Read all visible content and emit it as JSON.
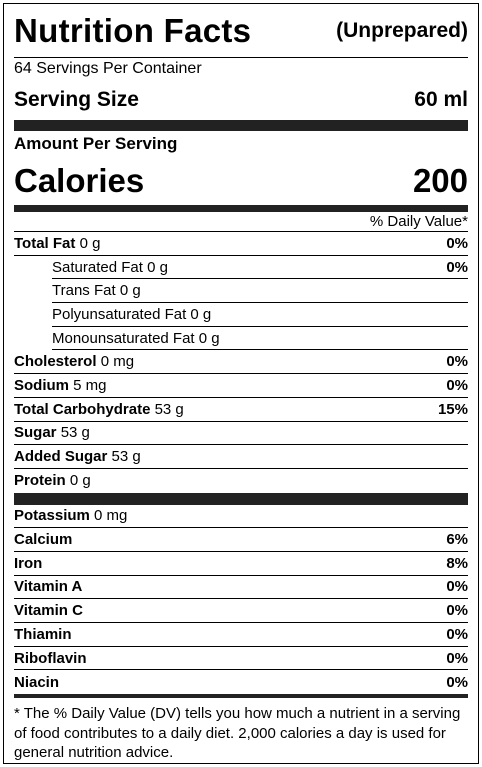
{
  "header": {
    "title": "Nutrition Facts",
    "subtitle": "(Unprepared)"
  },
  "servings": "64 Servings Per Container",
  "serving_size": {
    "label": "Serving Size",
    "value": "60 ml"
  },
  "amount_label": "Amount Per Serving",
  "calories": {
    "label": "Calories",
    "value": "200"
  },
  "dv_header": "% Daily Value*",
  "nutrients": [
    {
      "name": "Total Fat",
      "amount": "0 g",
      "dv": "0%",
      "sub": [
        {
          "name": "Saturated Fat",
          "amount": "0 g",
          "dv": "0%"
        },
        {
          "name": "Trans Fat",
          "amount": "0 g"
        },
        {
          "name": "Polyunsaturated Fat",
          "amount": "0 g"
        },
        {
          "name": "Monounsaturated Fat",
          "amount": "0 g"
        }
      ]
    },
    {
      "name": "Cholesterol",
      "amount": "0 mg",
      "dv": "0%"
    },
    {
      "name": "Sodium",
      "amount": "5 mg",
      "dv": "0%"
    },
    {
      "name": "Total Carbohydrate",
      "amount": "53 g",
      "dv": "15%"
    },
    {
      "name": "Sugar",
      "amount": "53 g"
    },
    {
      "name": "Added Sugar",
      "amount": "53 g"
    },
    {
      "name": "Protein",
      "amount": "0 g"
    }
  ],
  "vitamins": [
    {
      "name": "Potassium",
      "amount": "0 mg"
    },
    {
      "name": "Calcium",
      "dv": "6%"
    },
    {
      "name": "Iron",
      "dv": "8%"
    },
    {
      "name": "Vitamin A",
      "dv": "0%"
    },
    {
      "name": "Vitamin C",
      "dv": "0%"
    },
    {
      "name": "Thiamin",
      "dv": "0%"
    },
    {
      "name": "Riboflavin",
      "dv": "0%"
    },
    {
      "name": "Niacin",
      "dv": "0%"
    }
  ],
  "footnote": "* The % Daily Value (DV) tells you how much a nutrient in a serving of food contributes to a daily diet. 2,000 calories a day is used for general nutrition advice."
}
